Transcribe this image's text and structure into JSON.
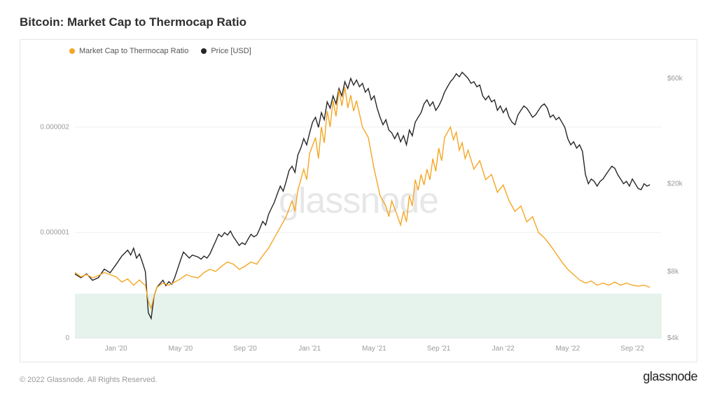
{
  "title": "Bitcoin: Market Cap to Thermocap Ratio",
  "copyright": "© 2022 Glassnode. All Rights Reserved.",
  "brand": "glassnode",
  "watermark": "glassnode",
  "legend": {
    "series1": {
      "label": "Market Cap to Thermocap Ratio",
      "color": "#f5a623"
    },
    "series2": {
      "label": "Price [USD]",
      "color": "#262626"
    }
  },
  "chart": {
    "type": "dual-axis-line",
    "background_color": "#ffffff",
    "grid_color": "#f0f0f0",
    "border_color": "#e5e5e5",
    "axis_font_size": 10,
    "axis_color": "#9a9a9a",
    "x": {
      "ticks": [
        "Jan '20",
        "May '20",
        "Sep '20",
        "Jan '21",
        "May '21",
        "Sep '21",
        "Jan '22",
        "May '22",
        "Sep '22"
      ],
      "tick_positions": [
        0.07,
        0.18,
        0.29,
        0.4,
        0.51,
        0.62,
        0.73,
        0.84,
        0.95
      ]
    },
    "y_left": {
      "scale": "linear",
      "min": 0,
      "max": 2.6e-06,
      "ticks": [
        {
          "v": 0,
          "label": "0"
        },
        {
          "v": 1e-06,
          "label": "0.000001"
        },
        {
          "v": 2e-06,
          "label": "0.000002"
        }
      ]
    },
    "y_right": {
      "scale": "log",
      "min": 4000,
      "max": 70000,
      "ticks": [
        {
          "v": 4000,
          "label": "$4k"
        },
        {
          "v": 8000,
          "label": "$8k"
        },
        {
          "v": 20000,
          "label": "$20k"
        },
        {
          "v": 60000,
          "label": "$60k"
        }
      ]
    },
    "shade_band": {
      "from": 0,
      "to": 4.2e-07,
      "color": "#e6f3ec"
    },
    "series1": {
      "name": "Market Cap to Thermocap Ratio",
      "color": "#f5a623",
      "line_width": 1.4,
      "axis": "left",
      "data": [
        [
          0.0,
          6.2e-07
        ],
        [
          0.01,
          5.8e-07
        ],
        [
          0.02,
          6e-07
        ],
        [
          0.03,
          5.7e-07
        ],
        [
          0.04,
          5.9e-07
        ],
        [
          0.05,
          6.2e-07
        ],
        [
          0.06,
          6e-07
        ],
        [
          0.07,
          5.8e-07
        ],
        [
          0.08,
          5.3e-07
        ],
        [
          0.09,
          5.6e-07
        ],
        [
          0.1,
          5e-07
        ],
        [
          0.11,
          5.5e-07
        ],
        [
          0.115,
          5.2e-07
        ],
        [
          0.12,
          5e-07
        ],
        [
          0.125,
          3.5e-07
        ],
        [
          0.13,
          2.8e-07
        ],
        [
          0.135,
          4e-07
        ],
        [
          0.14,
          4.8e-07
        ],
        [
          0.15,
          5.2e-07
        ],
        [
          0.16,
          5e-07
        ],
        [
          0.17,
          5.3e-07
        ],
        [
          0.18,
          5.6e-07
        ],
        [
          0.19,
          6e-07
        ],
        [
          0.2,
          5.8e-07
        ],
        [
          0.21,
          5.7e-07
        ],
        [
          0.22,
          6.2e-07
        ],
        [
          0.23,
          6.5e-07
        ],
        [
          0.24,
          6.3e-07
        ],
        [
          0.25,
          6.8e-07
        ],
        [
          0.26,
          7.2e-07
        ],
        [
          0.27,
          7e-07
        ],
        [
          0.28,
          6.5e-07
        ],
        [
          0.29,
          6.8e-07
        ],
        [
          0.3,
          7.2e-07
        ],
        [
          0.31,
          7e-07
        ],
        [
          0.32,
          7.8e-07
        ],
        [
          0.33,
          8.5e-07
        ],
        [
          0.34,
          9.5e-07
        ],
        [
          0.35,
          1.05e-06
        ],
        [
          0.36,
          1.15e-06
        ],
        [
          0.37,
          1.3e-06
        ],
        [
          0.375,
          1.2e-06
        ],
        [
          0.38,
          1.4e-06
        ],
        [
          0.39,
          1.6e-06
        ],
        [
          0.395,
          1.5e-06
        ],
        [
          0.4,
          1.75e-06
        ],
        [
          0.41,
          1.9e-06
        ],
        [
          0.415,
          1.7e-06
        ],
        [
          0.42,
          2e-06
        ],
        [
          0.425,
          1.85e-06
        ],
        [
          0.43,
          2.15e-06
        ],
        [
          0.435,
          2e-06
        ],
        [
          0.44,
          2.25e-06
        ],
        [
          0.445,
          2.1e-06
        ],
        [
          0.45,
          2.35e-06
        ],
        [
          0.455,
          2.2e-06
        ],
        [
          0.46,
          2.38e-06
        ],
        [
          0.465,
          2.18e-06
        ],
        [
          0.47,
          2.3e-06
        ],
        [
          0.475,
          2.15e-06
        ],
        [
          0.48,
          2.25e-06
        ],
        [
          0.49,
          2e-06
        ],
        [
          0.5,
          1.9e-06
        ],
        [
          0.51,
          1.6e-06
        ],
        [
          0.52,
          1.35e-06
        ],
        [
          0.53,
          1.25e-06
        ],
        [
          0.535,
          1.15e-06
        ],
        [
          0.54,
          1.3e-06
        ],
        [
          0.55,
          1.15e-06
        ],
        [
          0.555,
          1.07e-06
        ],
        [
          0.56,
          1.2e-06
        ],
        [
          0.565,
          1.1e-06
        ],
        [
          0.57,
          1.35e-06
        ],
        [
          0.575,
          1.25e-06
        ],
        [
          0.58,
          1.5e-06
        ],
        [
          0.585,
          1.4e-06
        ],
        [
          0.59,
          1.55e-06
        ],
        [
          0.595,
          1.45e-06
        ],
        [
          0.6,
          1.6e-06
        ],
        [
          0.605,
          1.5e-06
        ],
        [
          0.61,
          1.7e-06
        ],
        [
          0.615,
          1.58e-06
        ],
        [
          0.62,
          1.8e-06
        ],
        [
          0.625,
          1.68e-06
        ],
        [
          0.63,
          1.9e-06
        ],
        [
          0.64,
          2e-06
        ],
        [
          0.645,
          1.88e-06
        ],
        [
          0.65,
          1.95e-06
        ],
        [
          0.655,
          1.78e-06
        ],
        [
          0.66,
          1.85e-06
        ],
        [
          0.665,
          1.7e-06
        ],
        [
          0.67,
          1.78e-06
        ],
        [
          0.68,
          1.6e-06
        ],
        [
          0.69,
          1.68e-06
        ],
        [
          0.7,
          1.5e-06
        ],
        [
          0.71,
          1.55e-06
        ],
        [
          0.72,
          1.38e-06
        ],
        [
          0.73,
          1.45e-06
        ],
        [
          0.74,
          1.3e-06
        ],
        [
          0.75,
          1.2e-06
        ],
        [
          0.76,
          1.25e-06
        ],
        [
          0.77,
          1.1e-06
        ],
        [
          0.78,
          1.15e-06
        ],
        [
          0.79,
          1e-06
        ],
        [
          0.8,
          9.5e-07
        ],
        [
          0.81,
          8.8e-07
        ],
        [
          0.82,
          8e-07
        ],
        [
          0.83,
          7.2e-07
        ],
        [
          0.84,
          6.5e-07
        ],
        [
          0.85,
          6e-07
        ],
        [
          0.86,
          5.5e-07
        ],
        [
          0.87,
          5.2e-07
        ],
        [
          0.88,
          5.4e-07
        ],
        [
          0.89,
          5e-07
        ],
        [
          0.9,
          5.2e-07
        ],
        [
          0.91,
          5e-07
        ],
        [
          0.92,
          5.3e-07
        ],
        [
          0.93,
          5e-07
        ],
        [
          0.94,
          5.2e-07
        ],
        [
          0.95,
          5e-07
        ],
        [
          0.96,
          4.9e-07
        ],
        [
          0.97,
          5e-07
        ],
        [
          0.98,
          4.8e-07
        ]
      ]
    },
    "series2": {
      "name": "Price [USD]",
      "color": "#262626",
      "line_width": 1.4,
      "axis": "right",
      "data": [
        [
          0.0,
          7800
        ],
        [
          0.01,
          7500
        ],
        [
          0.02,
          7800
        ],
        [
          0.03,
          7300
        ],
        [
          0.04,
          7500
        ],
        [
          0.05,
          8200
        ],
        [
          0.06,
          7900
        ],
        [
          0.07,
          8600
        ],
        [
          0.08,
          9400
        ],
        [
          0.09,
          10000
        ],
        [
          0.095,
          9500
        ],
        [
          0.1,
          10200
        ],
        [
          0.105,
          9200
        ],
        [
          0.11,
          9600
        ],
        [
          0.115,
          8800
        ],
        [
          0.12,
          8000
        ],
        [
          0.125,
          5200
        ],
        [
          0.13,
          4900
        ],
        [
          0.135,
          6200
        ],
        [
          0.14,
          6800
        ],
        [
          0.15,
          7300
        ],
        [
          0.155,
          6900
        ],
        [
          0.16,
          7200
        ],
        [
          0.165,
          7000
        ],
        [
          0.17,
          7500
        ],
        [
          0.18,
          9000
        ],
        [
          0.185,
          9800
        ],
        [
          0.19,
          9500
        ],
        [
          0.195,
          9200
        ],
        [
          0.2,
          9500
        ],
        [
          0.21,
          9300
        ],
        [
          0.215,
          9100
        ],
        [
          0.22,
          9400
        ],
        [
          0.225,
          9200
        ],
        [
          0.23,
          9600
        ],
        [
          0.24,
          11000
        ],
        [
          0.245,
          11800
        ],
        [
          0.25,
          11500
        ],
        [
          0.255,
          12000
        ],
        [
          0.26,
          11700
        ],
        [
          0.265,
          12200
        ],
        [
          0.27,
          11500
        ],
        [
          0.275,
          11000
        ],
        [
          0.28,
          10500
        ],
        [
          0.285,
          10800
        ],
        [
          0.29,
          10600
        ],
        [
          0.295,
          11200
        ],
        [
          0.3,
          11800
        ],
        [
          0.305,
          11500
        ],
        [
          0.31,
          11700
        ],
        [
          0.315,
          12500
        ],
        [
          0.32,
          13500
        ],
        [
          0.325,
          13000
        ],
        [
          0.33,
          14500
        ],
        [
          0.335,
          15500
        ],
        [
          0.34,
          16500
        ],
        [
          0.345,
          18000
        ],
        [
          0.35,
          19500
        ],
        [
          0.355,
          18500
        ],
        [
          0.36,
          20500
        ],
        [
          0.365,
          23000
        ],
        [
          0.37,
          24000
        ],
        [
          0.375,
          22500
        ],
        [
          0.38,
          27000
        ],
        [
          0.385,
          29000
        ],
        [
          0.39,
          32000
        ],
        [
          0.395,
          30000
        ],
        [
          0.4,
          34000
        ],
        [
          0.405,
          38000
        ],
        [
          0.41,
          40000
        ],
        [
          0.415,
          36000
        ],
        [
          0.42,
          42000
        ],
        [
          0.425,
          39000
        ],
        [
          0.43,
          47000
        ],
        [
          0.435,
          44000
        ],
        [
          0.44,
          50000
        ],
        [
          0.445,
          46000
        ],
        [
          0.45,
          54000
        ],
        [
          0.455,
          50000
        ],
        [
          0.46,
          58000
        ],
        [
          0.465,
          54000
        ],
        [
          0.47,
          60000
        ],
        [
          0.475,
          56000
        ],
        [
          0.48,
          59000
        ],
        [
          0.485,
          55000
        ],
        [
          0.49,
          57000
        ],
        [
          0.495,
          52000
        ],
        [
          0.5,
          54000
        ],
        [
          0.505,
          48000
        ],
        [
          0.51,
          50000
        ],
        [
          0.515,
          44000
        ],
        [
          0.52,
          40000
        ],
        [
          0.525,
          37000
        ],
        [
          0.53,
          39000
        ],
        [
          0.535,
          35000
        ],
        [
          0.54,
          34000
        ],
        [
          0.545,
          32000
        ],
        [
          0.55,
          34000
        ],
        [
          0.555,
          31000
        ],
        [
          0.56,
          33000
        ],
        [
          0.565,
          30000
        ],
        [
          0.57,
          35000
        ],
        [
          0.575,
          33000
        ],
        [
          0.58,
          38000
        ],
        [
          0.585,
          40000
        ],
        [
          0.59,
          42000
        ],
        [
          0.595,
          46000
        ],
        [
          0.6,
          48000
        ],
        [
          0.605,
          45000
        ],
        [
          0.61,
          47000
        ],
        [
          0.615,
          43000
        ],
        [
          0.62,
          45000
        ],
        [
          0.625,
          48000
        ],
        [
          0.63,
          52000
        ],
        [
          0.635,
          55000
        ],
        [
          0.64,
          58000
        ],
        [
          0.645,
          60000
        ],
        [
          0.65,
          63000
        ],
        [
          0.655,
          61000
        ],
        [
          0.66,
          64000
        ],
        [
          0.665,
          62000
        ],
        [
          0.67,
          60000
        ],
        [
          0.675,
          57000
        ],
        [
          0.68,
          58000
        ],
        [
          0.685,
          55000
        ],
        [
          0.69,
          56000
        ],
        [
          0.695,
          50000
        ],
        [
          0.7,
          48000
        ],
        [
          0.705,
          50000
        ],
        [
          0.71,
          47000
        ],
        [
          0.715,
          48000
        ],
        [
          0.72,
          43000
        ],
        [
          0.725,
          45000
        ],
        [
          0.73,
          42000
        ],
        [
          0.735,
          44000
        ],
        [
          0.74,
          40000
        ],
        [
          0.745,
          38000
        ],
        [
          0.75,
          37000
        ],
        [
          0.755,
          41000
        ],
        [
          0.76,
          43000
        ],
        [
          0.765,
          45000
        ],
        [
          0.77,
          44000
        ],
        [
          0.775,
          42000
        ],
        [
          0.78,
          40000
        ],
        [
          0.785,
          41000
        ],
        [
          0.79,
          43000
        ],
        [
          0.795,
          45000
        ],
        [
          0.8,
          46000
        ],
        [
          0.805,
          44000
        ],
        [
          0.81,
          40000
        ],
        [
          0.815,
          41000
        ],
        [
          0.82,
          39000
        ],
        [
          0.825,
          40000
        ],
        [
          0.83,
          38000
        ],
        [
          0.835,
          36000
        ],
        [
          0.84,
          32000
        ],
        [
          0.845,
          30000
        ],
        [
          0.85,
          31000
        ],
        [
          0.855,
          29000
        ],
        [
          0.86,
          30000
        ],
        [
          0.865,
          28000
        ],
        [
          0.87,
          22000
        ],
        [
          0.875,
          20000
        ],
        [
          0.88,
          21000
        ],
        [
          0.885,
          20500
        ],
        [
          0.89,
          19500
        ],
        [
          0.895,
          20500
        ],
        [
          0.9,
          21000
        ],
        [
          0.905,
          22000
        ],
        [
          0.91,
          23000
        ],
        [
          0.915,
          24000
        ],
        [
          0.92,
          23500
        ],
        [
          0.925,
          22000
        ],
        [
          0.93,
          21000
        ],
        [
          0.935,
          20000
        ],
        [
          0.94,
          20500
        ],
        [
          0.945,
          19500
        ],
        [
          0.95,
          21000
        ],
        [
          0.955,
          20000
        ],
        [
          0.96,
          19000
        ],
        [
          0.965,
          18800
        ],
        [
          0.97,
          20000
        ],
        [
          0.975,
          19500
        ],
        [
          0.98,
          19800
        ]
      ]
    }
  }
}
